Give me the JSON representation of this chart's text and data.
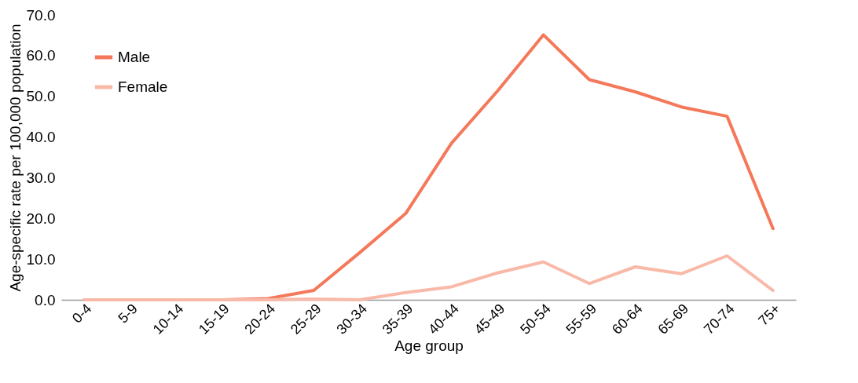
{
  "chart_data": {
    "type": "line",
    "xlabel": "Age group",
    "ylabel": "Age-specific rate per 100,000 population",
    "categories": [
      "0-4",
      "5-9",
      "10-14",
      "15-19",
      "20-24",
      "25-29",
      "30-34",
      "35-39",
      "40-44",
      "45-49",
      "50-54",
      "55-59",
      "60-64",
      "65-69",
      "70-74",
      "75+"
    ],
    "series": [
      {
        "name": "Male",
        "color": "#f4795b",
        "values": [
          0,
          0,
          0,
          0,
          0.3,
          2.3,
          11.6,
          21.2,
          38.5,
          51.3,
          65.1,
          54.1,
          51.1,
          47.4,
          45.1,
          17.5
        ]
      },
      {
        "name": "Female",
        "color": "#f9b9a8",
        "values": [
          0,
          0,
          0,
          0,
          0,
          0.2,
          0,
          1.8,
          3.2,
          6.6,
          9.3,
          4.0,
          8.1,
          6.4,
          10.8,
          2.3
        ]
      }
    ],
    "ylim": [
      0,
      70
    ],
    "yticks": [
      {
        "value": 0,
        "label": "0.0"
      },
      {
        "value": 10,
        "label": "10.0"
      },
      {
        "value": 20,
        "label": "20.0"
      },
      {
        "value": 30,
        "label": "30.0"
      },
      {
        "value": 40,
        "label": "40.0"
      },
      {
        "value": 50,
        "label": "50.0"
      },
      {
        "value": 60,
        "label": "60.0"
      },
      {
        "value": 70,
        "label": "70.0"
      }
    ],
    "grid": false,
    "legend": "top left",
    "marker": "none",
    "line_style": "solid"
  }
}
